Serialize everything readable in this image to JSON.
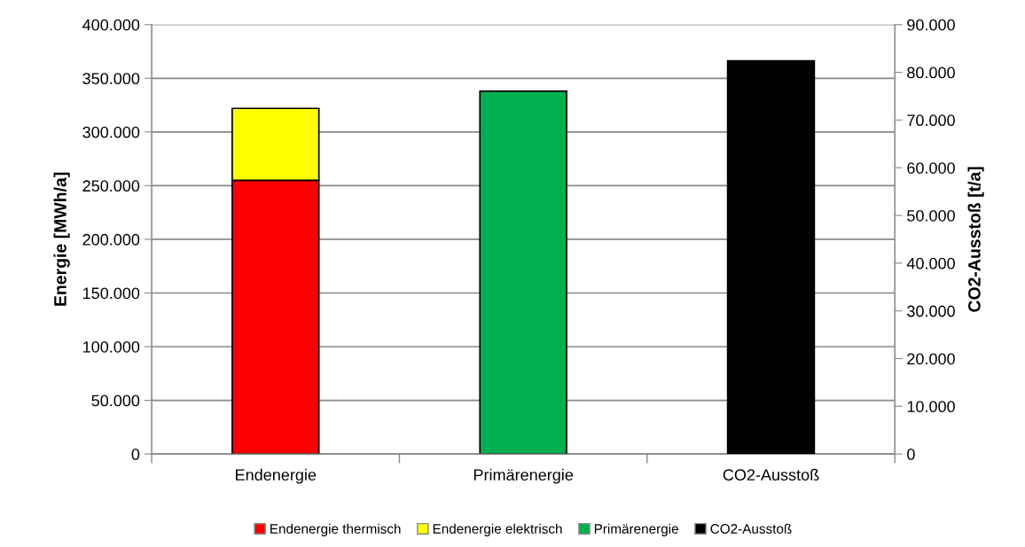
{
  "chart_data": {
    "type": "bar",
    "stacked": true,
    "categories": [
      "Endenergie",
      "Primärenergie",
      "CO2-Ausstoß"
    ],
    "ylabel": "Energie [MWh/a]",
    "y2label": "CO2-Ausstoß [t/a]",
    "series": [
      {
        "name": "Endenergie thermisch",
        "color": "#ff0000",
        "values": [
          255000,
          null,
          null
        ]
      },
      {
        "name": "Endenergie elektrisch",
        "color": "#ffff00",
        "values": [
          67000,
          null,
          null
        ]
      },
      {
        "name": "Primärenergie",
        "color": "#00b050",
        "values": [
          null,
          338000,
          null
        ]
      },
      {
        "name": "CO2-Ausstoß",
        "color": "#000000",
        "values": [
          null,
          null,
          82400
        ],
        "axis": "y2"
      }
    ],
    "ylim": [
      0,
      400000
    ],
    "yticks": [
      {
        "value": 0,
        "label": "0"
      },
      {
        "value": 50000,
        "label": "50.000"
      },
      {
        "value": 100000,
        "label": "100.000"
      },
      {
        "value": 150000,
        "label": "150.000"
      },
      {
        "value": 200000,
        "label": "200.000"
      },
      {
        "value": 250000,
        "label": "250.000"
      },
      {
        "value": 300000,
        "label": "300.000"
      },
      {
        "value": 350000,
        "label": "350.000"
      },
      {
        "value": 400000,
        "label": "400.000"
      }
    ],
    "y2lim": [
      0,
      90000
    ],
    "y2ticks": [
      {
        "value": 0,
        "label": "0"
      },
      {
        "value": 10000,
        "label": "10.000"
      },
      {
        "value": 20000,
        "label": "20.000"
      },
      {
        "value": 30000,
        "label": "30.000"
      },
      {
        "value": 40000,
        "label": "40.000"
      },
      {
        "value": 50000,
        "label": "50.000"
      },
      {
        "value": 60000,
        "label": "60.000"
      },
      {
        "value": 70000,
        "label": "70.000"
      },
      {
        "value": 80000,
        "label": "80.000"
      },
      {
        "value": 90000,
        "label": "90.000"
      }
    ],
    "grid": "y",
    "legend": "bottom"
  }
}
